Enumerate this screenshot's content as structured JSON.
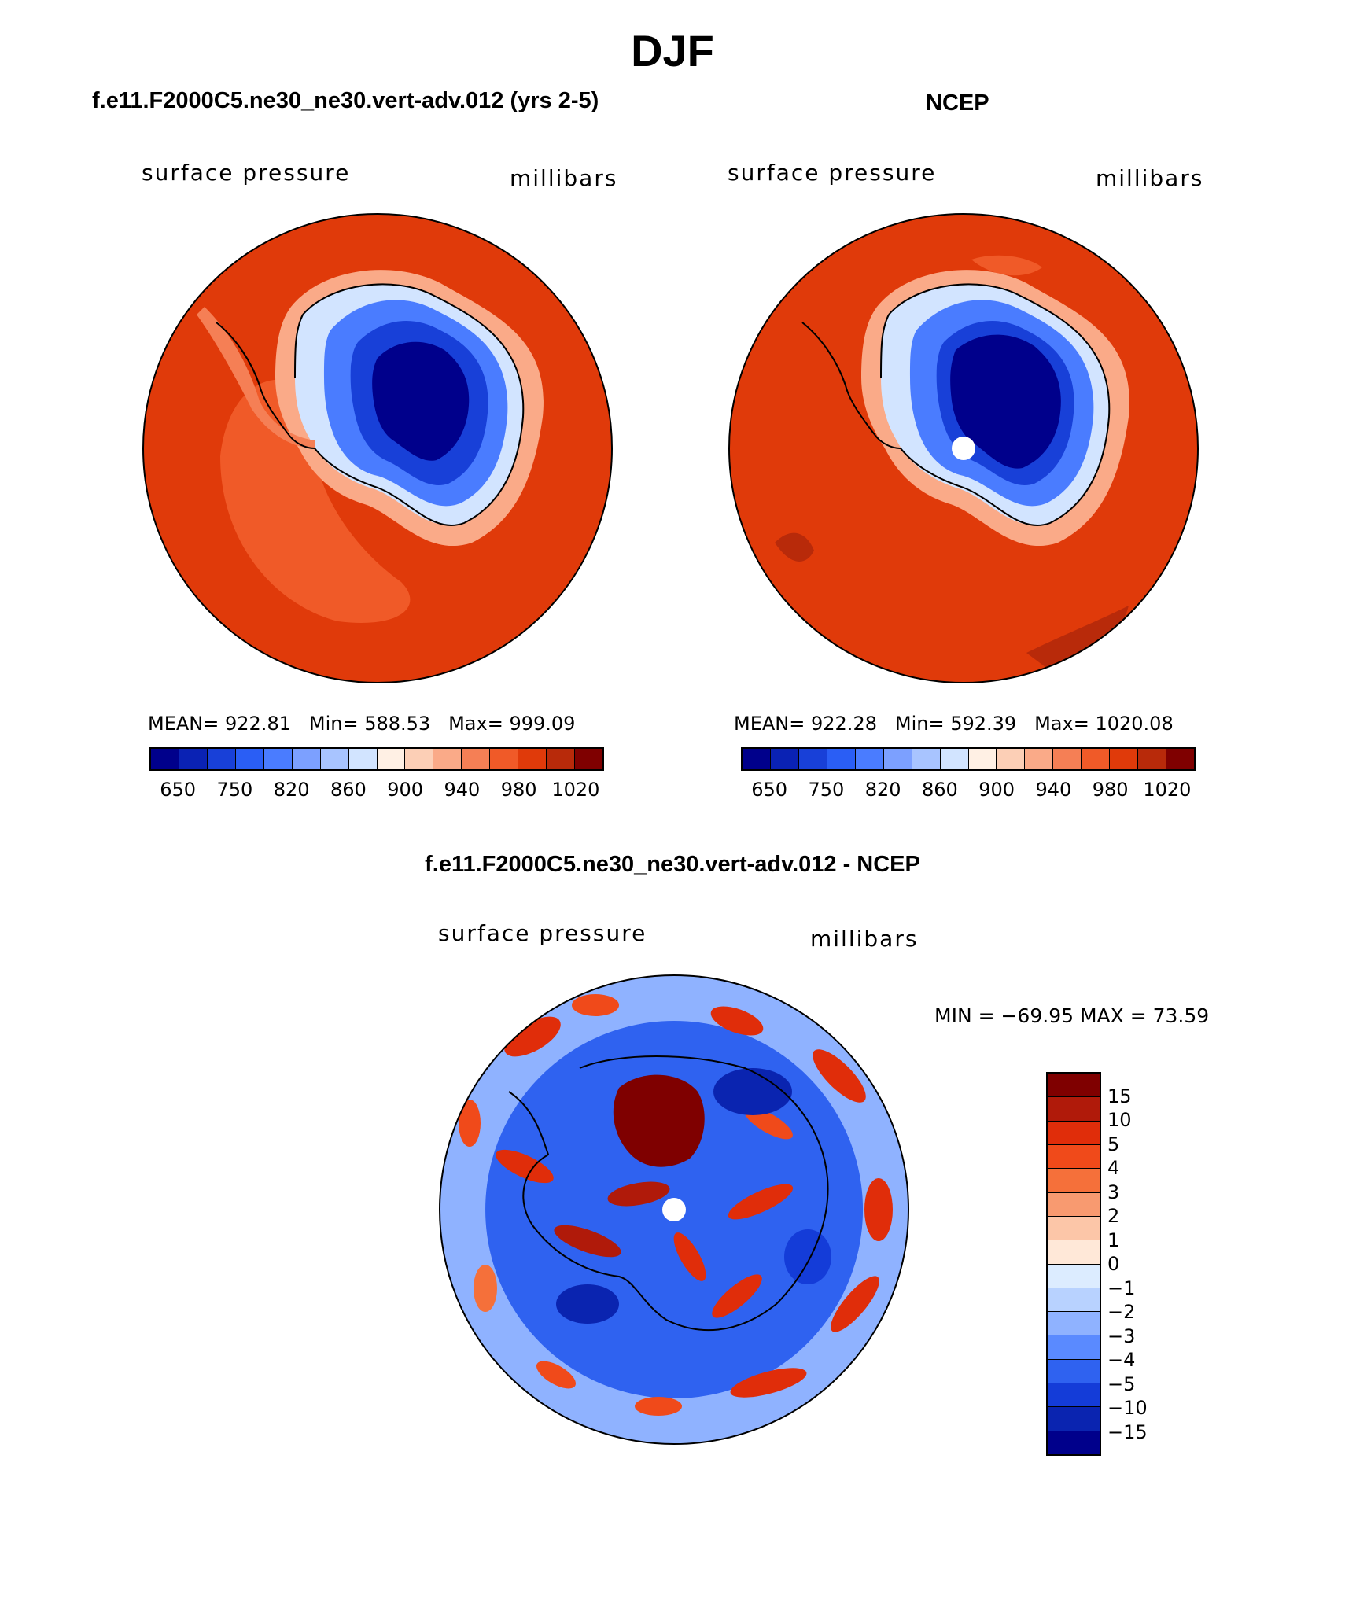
{
  "page": {
    "season": "DJF",
    "left_panel_title": "f.e11.F2000C5.ne30_ne30.vert-adv.012 (yrs 2-5)",
    "right_panel_title": "NCEP",
    "diff_panel_title": "f.e11.F2000C5.ne30_ne30.vert-adv.012 - NCEP"
  },
  "panels": {
    "left": {
      "variable_label": "surface pressure",
      "units_label": "millibars",
      "stats": {
        "mean_label": "MEAN=",
        "mean": "922.81",
        "min_label": "Min=",
        "min": "588.53",
        "max_label": "Max=",
        "max": "999.09"
      }
    },
    "right": {
      "variable_label": "surface pressure",
      "units_label": "millibars",
      "stats": {
        "mean_label": "MEAN=",
        "mean": "922.28",
        "min_label": "Min=",
        "min": "592.39",
        "max_label": "Max=",
        "max": "1020.08"
      }
    },
    "diff": {
      "variable_label": "surface pressure",
      "units_label": "millibars",
      "range_text": "MIN = −69.95 MAX =   73.59"
    }
  },
  "colorbars": {
    "abs": {
      "colors": [
        "#00008b",
        "#0a22b4",
        "#1840d8",
        "#2a5ef5",
        "#4a7cff",
        "#7ca0ff",
        "#a8c4ff",
        "#d2e4ff",
        "#fff0e4",
        "#fccfb6",
        "#faaa88",
        "#f57f55",
        "#f05a28",
        "#e03a0a",
        "#b82a0a",
        "#7f0000"
      ],
      "tick_labels": [
        "650",
        "750",
        "820",
        "860",
        "900",
        "940",
        "980",
        "1020"
      ]
    },
    "diff": {
      "colors": [
        "#7f0000",
        "#b01a0a",
        "#e02d0a",
        "#f04a1a",
        "#f5703a",
        "#f89a70",
        "#fcc6a8",
        "#ffe8d8",
        "#dcecff",
        "#b8d2ff",
        "#8fb2ff",
        "#5a8aff",
        "#2f62f0",
        "#143cd8",
        "#0a24b0",
        "#00008b"
      ],
      "tick_labels": [
        "15",
        "10",
        "5",
        "4",
        "3",
        "2",
        "1",
        "0",
        "−1",
        "−2",
        "−3",
        "−4",
        "−5",
        "−10",
        "−15"
      ]
    }
  },
  "colors": {
    "ocean_high": "#e03a0a",
    "land_low": "#00008b"
  }
}
